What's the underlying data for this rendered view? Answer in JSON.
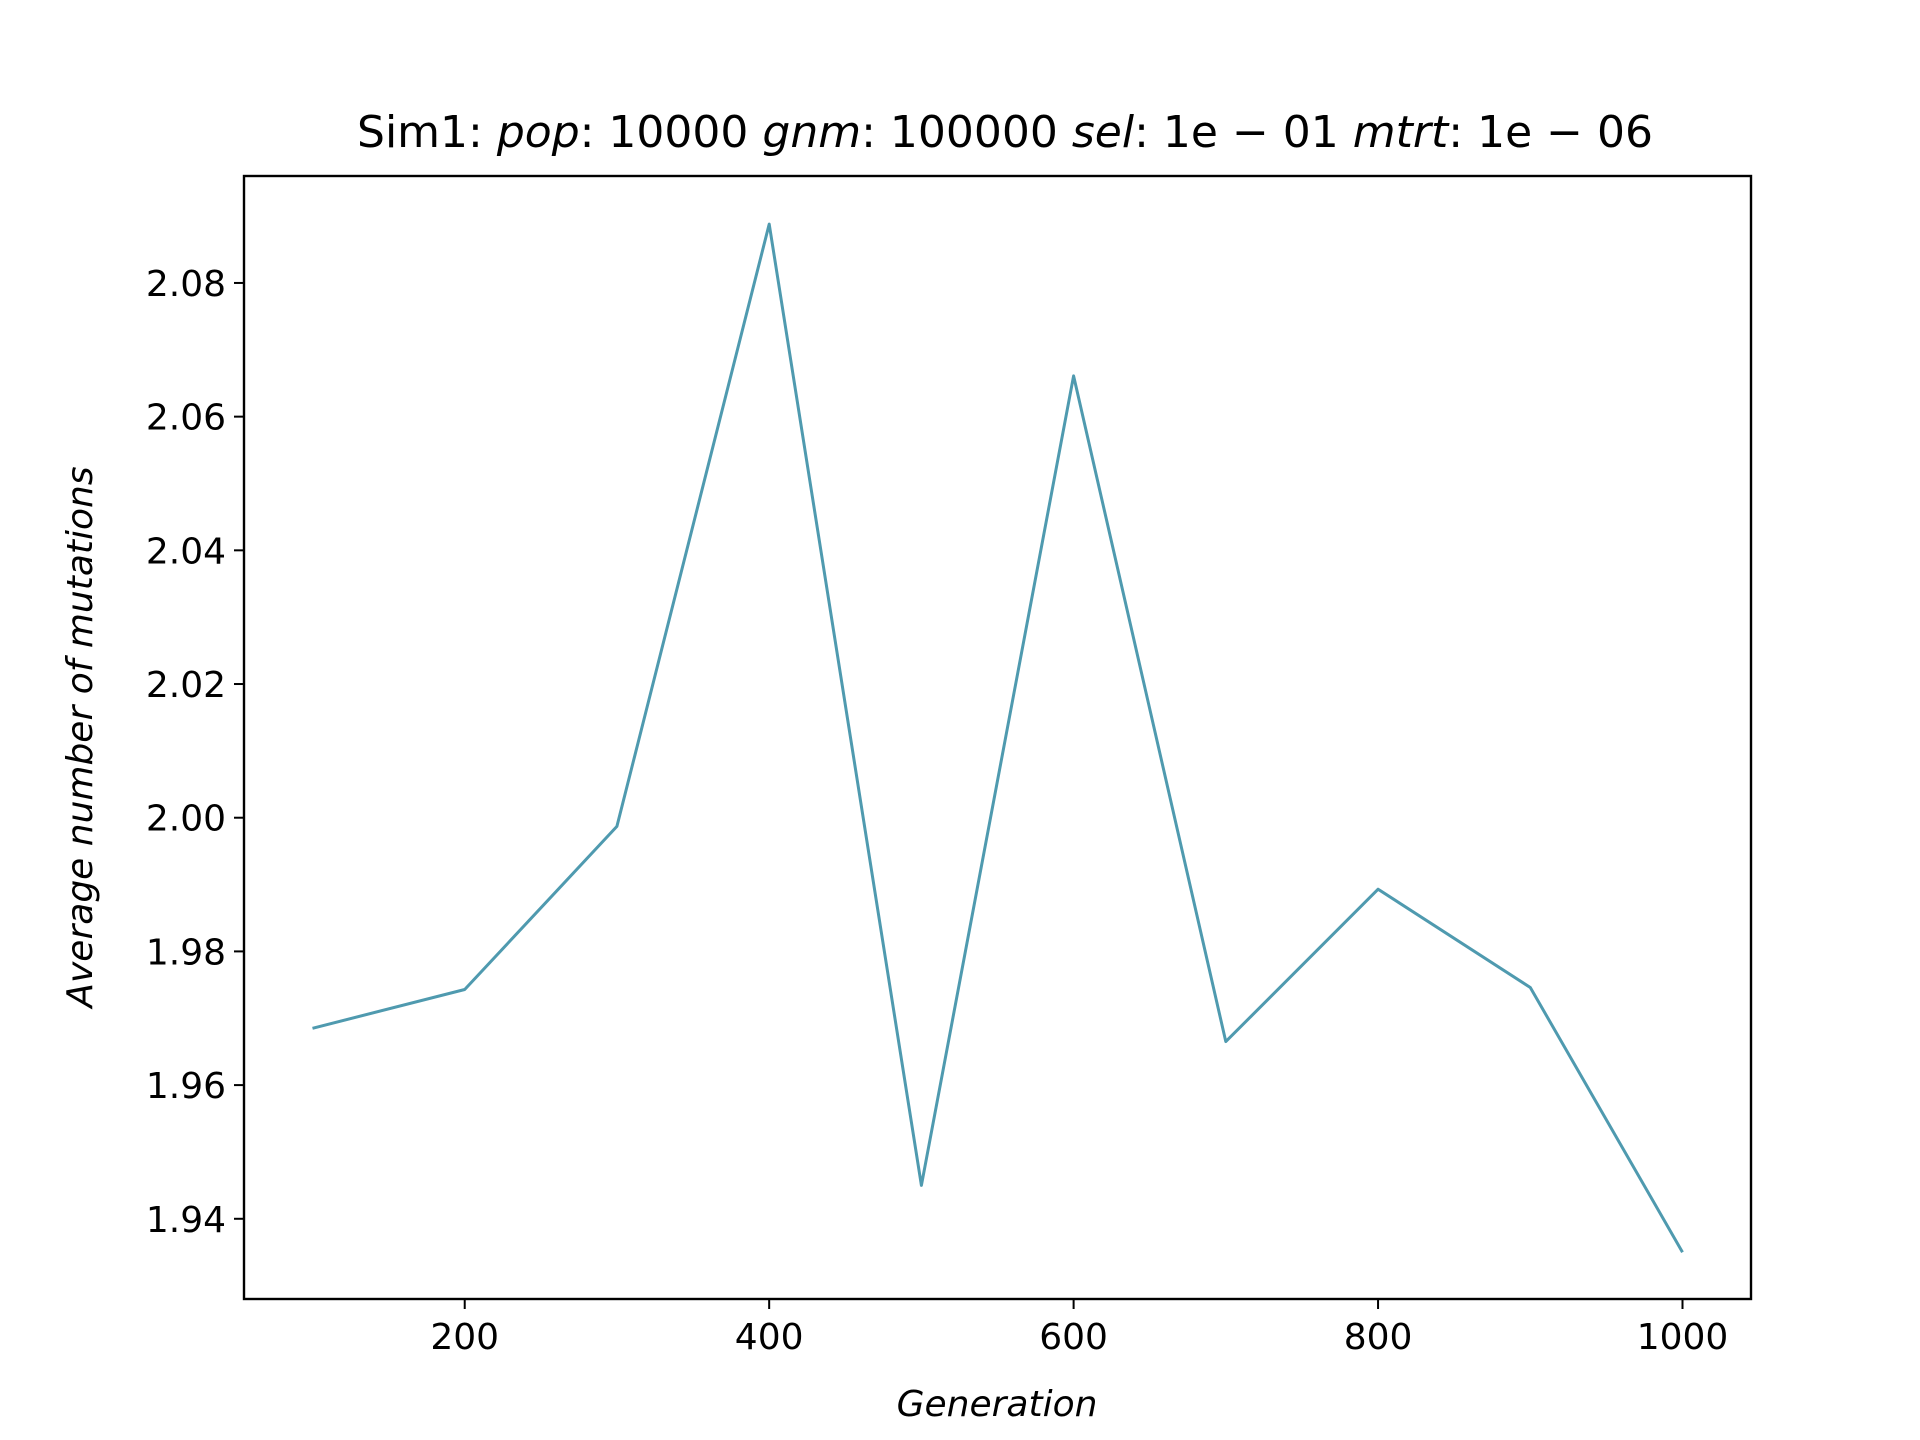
{
  "chart_data": {
    "type": "line",
    "title": {
      "prefix": "Sim1: ",
      "pop_label": "pop",
      "pop_value": ": 10000",
      "gnm_label": "gnm",
      "gnm_value": ": 100000",
      "sel_label": "sel",
      "sel_value": ": 1e − 01",
      "mtrt_label": "mtrt",
      "mtrt_value": ": 1e − 06"
    },
    "xlabel": "Generation",
    "ylabel": "Average number of mutations",
    "xlim": [
      55,
      1045
    ],
    "ylim": [
      1.928,
      2.096
    ],
    "x_ticks": [
      200,
      400,
      600,
      800,
      1000
    ],
    "x_tick_labels": [
      "200",
      "400",
      "600",
      "800",
      "1000"
    ],
    "y_ticks": [
      1.94,
      1.96,
      1.98,
      2.0,
      2.02,
      2.04,
      2.06,
      2.08
    ],
    "y_tick_labels": [
      "1.94",
      "1.96",
      "1.98",
      "2.00",
      "2.02",
      "2.04",
      "2.06",
      "2.08"
    ],
    "grid": false,
    "series": [
      {
        "color": "#4f9aaf",
        "x": [
          100,
          200,
          300,
          400,
          500,
          600,
          700,
          800,
          900,
          1000
        ],
        "y": [
          1.9685,
          1.9743,
          1.9987,
          2.0888,
          1.945,
          2.0661,
          1.9665,
          1.9893,
          1.9746,
          1.935
        ]
      }
    ]
  }
}
